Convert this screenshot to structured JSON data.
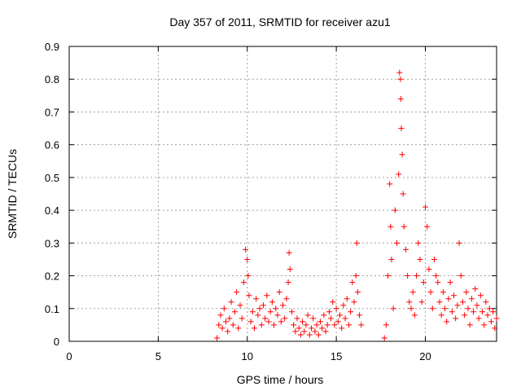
{
  "chart_data": {
    "type": "scatter",
    "title": "Day 357 of 2011, SRMTID for receiver azu1",
    "xlabel": "GPS time / hours",
    "ylabel": "SRMTID / TECUs",
    "xlim": [
      0,
      24
    ],
    "ylim": [
      0,
      0.9
    ],
    "xticks": [
      0,
      5,
      10,
      15,
      20
    ],
    "xtick_labels": [
      "0",
      "5",
      "10",
      "15",
      "20"
    ],
    "yticks": [
      0,
      0.1,
      0.2,
      0.3,
      0.4,
      0.5,
      0.6,
      0.7,
      0.8,
      0.9
    ],
    "ytick_labels": [
      "0",
      "0.1",
      "0.2",
      "0.3",
      "0.4",
      "0.5",
      "0.6",
      "0.7",
      "0.8",
      "0.9"
    ],
    "grid": true,
    "marker": "plus",
    "series_color": "#ff0000",
    "series": [
      {
        "name": "azu1",
        "points": [
          [
            8.3,
            0.01
          ],
          [
            8.4,
            0.05
          ],
          [
            8.5,
            0.08
          ],
          [
            8.6,
            0.04
          ],
          [
            8.7,
            0.1
          ],
          [
            8.8,
            0.06
          ],
          [
            8.9,
            0.03
          ],
          [
            9.0,
            0.07
          ],
          [
            9.1,
            0.12
          ],
          [
            9.2,
            0.05
          ],
          [
            9.3,
            0.09
          ],
          [
            9.4,
            0.15
          ],
          [
            9.5,
            0.04
          ],
          [
            9.6,
            0.11
          ],
          [
            9.7,
            0.07
          ],
          [
            9.8,
            0.18
          ],
          [
            9.9,
            0.28
          ],
          [
            10.0,
            0.25
          ],
          [
            10.05,
            0.2
          ],
          [
            10.1,
            0.14
          ],
          [
            10.2,
            0.06
          ],
          [
            10.3,
            0.09
          ],
          [
            10.4,
            0.04
          ],
          [
            10.5,
            0.13
          ],
          [
            10.6,
            0.08
          ],
          [
            10.7,
            0.1
          ],
          [
            10.8,
            0.05
          ],
          [
            10.9,
            0.11
          ],
          [
            11.0,
            0.07
          ],
          [
            11.1,
            0.14
          ],
          [
            11.2,
            0.06
          ],
          [
            11.3,
            0.09
          ],
          [
            11.4,
            0.12
          ],
          [
            11.5,
            0.05
          ],
          [
            11.6,
            0.1
          ],
          [
            11.7,
            0.08
          ],
          [
            11.8,
            0.15
          ],
          [
            11.9,
            0.06
          ],
          [
            12.0,
            0.11
          ],
          [
            12.1,
            0.07
          ],
          [
            12.2,
            0.13
          ],
          [
            12.3,
            0.18
          ],
          [
            12.35,
            0.27
          ],
          [
            12.4,
            0.22
          ],
          [
            12.5,
            0.09
          ],
          [
            12.6,
            0.05
          ],
          [
            12.7,
            0.03
          ],
          [
            12.8,
            0.07
          ],
          [
            12.9,
            0.04
          ],
          [
            13.0,
            0.02
          ],
          [
            13.1,
            0.06
          ],
          [
            13.2,
            0.03
          ],
          [
            13.3,
            0.05
          ],
          [
            13.4,
            0.08
          ],
          [
            13.5,
            0.02
          ],
          [
            13.6,
            0.04
          ],
          [
            13.7,
            0.07
          ],
          [
            13.8,
            0.03
          ],
          [
            13.9,
            0.05
          ],
          [
            14.0,
            0.02
          ],
          [
            14.1,
            0.06
          ],
          [
            14.2,
            0.04
          ],
          [
            14.3,
            0.08
          ],
          [
            14.4,
            0.03
          ],
          [
            14.5,
            0.05
          ],
          [
            14.6,
            0.09
          ],
          [
            14.7,
            0.07
          ],
          [
            14.8,
            0.12
          ],
          [
            14.9,
            0.05
          ],
          [
            15.0,
            0.1
          ],
          [
            15.1,
            0.06
          ],
          [
            15.2,
            0.08
          ],
          [
            15.3,
            0.04
          ],
          [
            15.4,
            0.11
          ],
          [
            15.5,
            0.07
          ],
          [
            15.6,
            0.13
          ],
          [
            15.7,
            0.05
          ],
          [
            15.8,
            0.09
          ],
          [
            15.9,
            0.18
          ],
          [
            16.0,
            0.12
          ],
          [
            16.1,
            0.2
          ],
          [
            16.15,
            0.3
          ],
          [
            16.2,
            0.15
          ],
          [
            16.3,
            0.08
          ],
          [
            16.4,
            0.05
          ],
          [
            17.7,
            0.01
          ],
          [
            17.8,
            0.05
          ],
          [
            17.9,
            0.2
          ],
          [
            18.0,
            0.48
          ],
          [
            18.05,
            0.35
          ],
          [
            18.1,
            0.25
          ],
          [
            18.2,
            0.1
          ],
          [
            18.3,
            0.4
          ],
          [
            18.4,
            0.3
          ],
          [
            18.5,
            0.51
          ],
          [
            18.55,
            0.82
          ],
          [
            18.6,
            0.8
          ],
          [
            18.62,
            0.74
          ],
          [
            18.65,
            0.65
          ],
          [
            18.7,
            0.57
          ],
          [
            18.75,
            0.45
          ],
          [
            18.8,
            0.35
          ],
          [
            18.9,
            0.28
          ],
          [
            19.0,
            0.2
          ],
          [
            19.1,
            0.12
          ],
          [
            19.2,
            0.1
          ],
          [
            19.3,
            0.15
          ],
          [
            19.4,
            0.08
          ],
          [
            19.5,
            0.2
          ],
          [
            19.6,
            0.3
          ],
          [
            19.7,
            0.25
          ],
          [
            19.8,
            0.12
          ],
          [
            19.9,
            0.18
          ],
          [
            20.0,
            0.41
          ],
          [
            20.1,
            0.35
          ],
          [
            20.2,
            0.22
          ],
          [
            20.3,
            0.15
          ],
          [
            20.4,
            0.1
          ],
          [
            20.5,
            0.25
          ],
          [
            20.6,
            0.2
          ],
          [
            20.7,
            0.18
          ],
          [
            20.8,
            0.12
          ],
          [
            20.9,
            0.08
          ],
          [
            21.0,
            0.15
          ],
          [
            21.1,
            0.1
          ],
          [
            21.2,
            0.06
          ],
          [
            21.3,
            0.13
          ],
          [
            21.4,
            0.18
          ],
          [
            21.5,
            0.09
          ],
          [
            21.6,
            0.14
          ],
          [
            21.7,
            0.07
          ],
          [
            21.8,
            0.11
          ],
          [
            21.9,
            0.3
          ],
          [
            22.0,
            0.2
          ],
          [
            22.1,
            0.12
          ],
          [
            22.2,
            0.08
          ],
          [
            22.3,
            0.15
          ],
          [
            22.4,
            0.1
          ],
          [
            22.5,
            0.05
          ],
          [
            22.6,
            0.13
          ],
          [
            22.7,
            0.09
          ],
          [
            22.8,
            0.16
          ],
          [
            22.9,
            0.11
          ],
          [
            23.0,
            0.07
          ],
          [
            23.1,
            0.14
          ],
          [
            23.2,
            0.09
          ],
          [
            23.3,
            0.05
          ],
          [
            23.4,
            0.12
          ],
          [
            23.5,
            0.08
          ],
          [
            23.6,
            0.1
          ],
          [
            23.7,
            0.06
          ],
          [
            23.8,
            0.09
          ],
          [
            23.9,
            0.04
          ],
          [
            24.0,
            0.07
          ]
        ]
      }
    ]
  }
}
